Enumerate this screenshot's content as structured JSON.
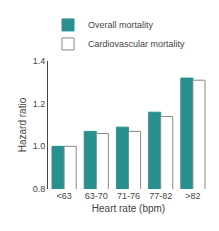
{
  "chart_data": {
    "type": "bar",
    "categories": [
      "<63",
      "63-70",
      "71-76",
      "77-82",
      ">82"
    ],
    "series": [
      {
        "name": "Overall mortality",
        "color": "#2a8f8f",
        "values": [
          1.0,
          1.07,
          1.09,
          1.16,
          1.32
        ]
      },
      {
        "name": "Cardiovascular mortality",
        "color": "#ffffff",
        "values": [
          1.0,
          1.06,
          1.07,
          1.14,
          1.31
        ]
      }
    ],
    "xlabel": "Heart rate (bpm)",
    "ylabel": "Hazard ratio",
    "ylim": [
      0.8,
      1.4
    ],
    "yticks": [
      0.8,
      {
        "value": 1.0,
        "label": "1.0"
      },
      1.2,
      1.4
    ],
    "grid": false,
    "legend": "upper left"
  }
}
